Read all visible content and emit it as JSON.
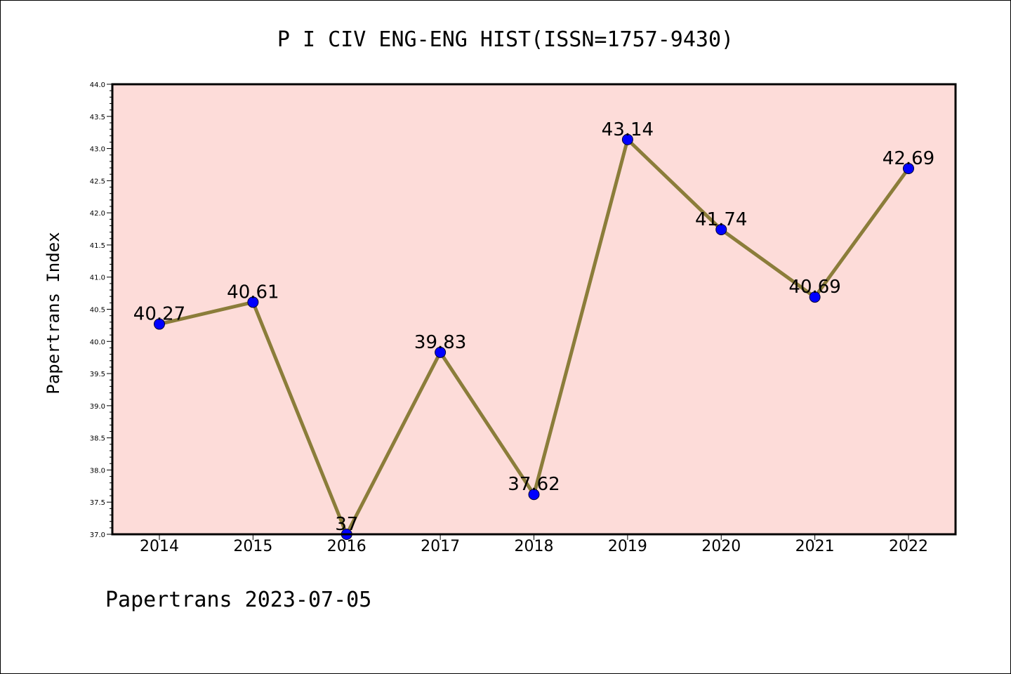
{
  "chart_data": {
    "type": "line",
    "title": "P I CIV ENG-ENG HIST(ISSN=1757-9430)",
    "xlabel": "",
    "ylabel": "Papertrans Index",
    "footer": "Papertrans 2023-07-05",
    "categories": [
      "2014",
      "2015",
      "2016",
      "2017",
      "2018",
      "2019",
      "2020",
      "2021",
      "2022"
    ],
    "values": [
      40.27,
      40.61,
      37,
      39.83,
      37.62,
      43.14,
      41.74,
      40.69,
      42.69
    ],
    "data_labels": [
      "40.27",
      "40.61",
      "37",
      "39.83",
      "37.62",
      "43.14",
      "41.74",
      "40.69",
      "42.69"
    ],
    "ylim": [
      37.0,
      44.0
    ],
    "yticks": [
      "37.0",
      "37.5",
      "38.0",
      "38.5",
      "39.0",
      "39.5",
      "40.0",
      "40.5",
      "41.0",
      "41.5",
      "42.0",
      "42.5",
      "43.0",
      "43.5",
      "44.0"
    ],
    "grid": false,
    "colors": {
      "plot_background": "#fddcd9",
      "line": "#8b7d3a",
      "marker": "#0000ff",
      "axes": "#000000"
    }
  }
}
